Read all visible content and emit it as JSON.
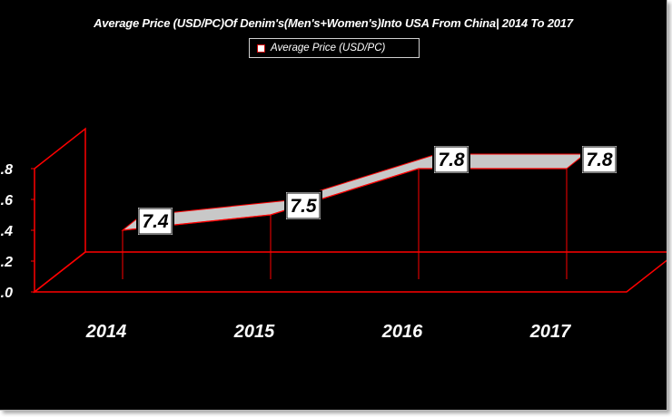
{
  "chart_data": {
    "type": "area",
    "title": "Average Price (USD/PC)Of Denim's(Men's+Women's)Into USA From China| 2014 To 2017",
    "categories": [
      "2014",
      "2015",
      "2016",
      "2017"
    ],
    "series": [
      {
        "name": "Average Price (USD/PC)",
        "values": [
          7.4,
          7.5,
          7.8,
          7.8
        ],
        "labels": [
          "7.4",
          "7.5",
          "7.8",
          "7.8"
        ]
      }
    ],
    "y_tick_labels": [
      ".0",
      ".2",
      ".4",
      ".6",
      ".8"
    ],
    "ylim": [
      7.0,
      7.8
    ],
    "legend_position": "top",
    "colors": {
      "background": "#000000",
      "axis": "#ff0000",
      "ribbon_fill": "#c8c8c8",
      "text": "#ffffff"
    }
  }
}
